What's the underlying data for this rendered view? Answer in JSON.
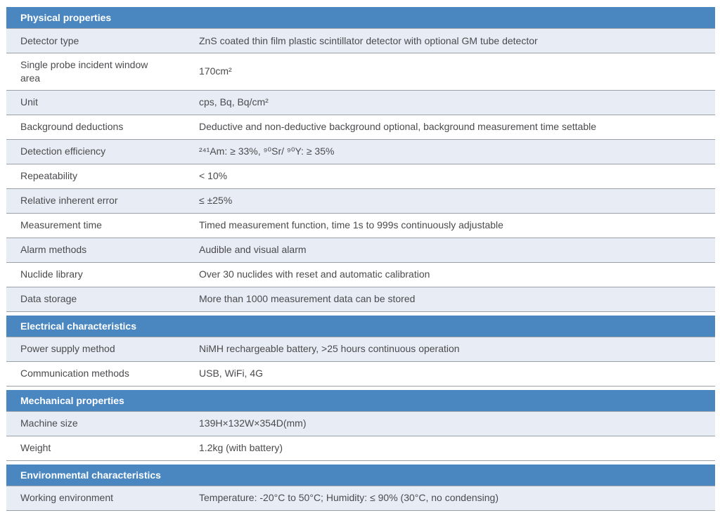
{
  "table": {
    "sections": [
      {
        "title": "Physical properties",
        "rows": [
          {
            "label": "Detector type",
            "value": "ZnS coated thin film plastic scintillator detector with optional GM tube detector"
          },
          {
            "label": "Single probe incident window area",
            "value": "170cm²"
          },
          {
            "label": "Unit",
            "value": "cps, Bq, Bq/cm²"
          },
          {
            "label": "Background deductions",
            "value": "Deductive and non-deductive background optional, background measurement time settable"
          },
          {
            "label": "Detection efficiency",
            "value": "²⁴¹Am: ≥ 33%, ⁹⁰Sr/ ⁹⁰Y: ≥ 35%"
          },
          {
            "label": "Repeatability",
            "value": "< 10%"
          },
          {
            "label": "Relative inherent error",
            "value": "≤ ±25%"
          },
          {
            "label": "Measurement time",
            "value": "Timed measurement function, time 1s to 999s continuously adjustable"
          },
          {
            "label": "Alarm methods",
            "value": "Audible and visual alarm"
          },
          {
            "label": "Nuclide library",
            "value": "Over 30 nuclides with reset and automatic calibration"
          },
          {
            "label": "Data storage",
            "value": "More than 1000 measurement data can be stored"
          }
        ]
      },
      {
        "title": "Electrical characteristics",
        "rows": [
          {
            "label": "Power supply method",
            "value": "NiMH rechargeable battery, >25 hours continuous operation"
          },
          {
            "label": "Communication methods",
            "value": "USB, WiFi, 4G"
          }
        ]
      },
      {
        "title": "Mechanical properties",
        "rows": [
          {
            "label": "Machine size",
            "value": "139H×132W×354D(mm)"
          },
          {
            "label": "Weight",
            "value": "1.2kg (with battery)"
          }
        ]
      },
      {
        "title": "Environmental characteristics",
        "rows": [
          {
            "label": "Working environment",
            "value": "Temperature: -20°C to 50°C; Humidity: ≤ 90% (30°C, no condensing)"
          }
        ]
      }
    ]
  },
  "colors": {
    "header_bg": "#4a87c1",
    "header_text": "#ffffff",
    "row_alt_bg": "#e8edf5",
    "separator": "#9aa0a8",
    "body_text": "#4b4b4e"
  }
}
